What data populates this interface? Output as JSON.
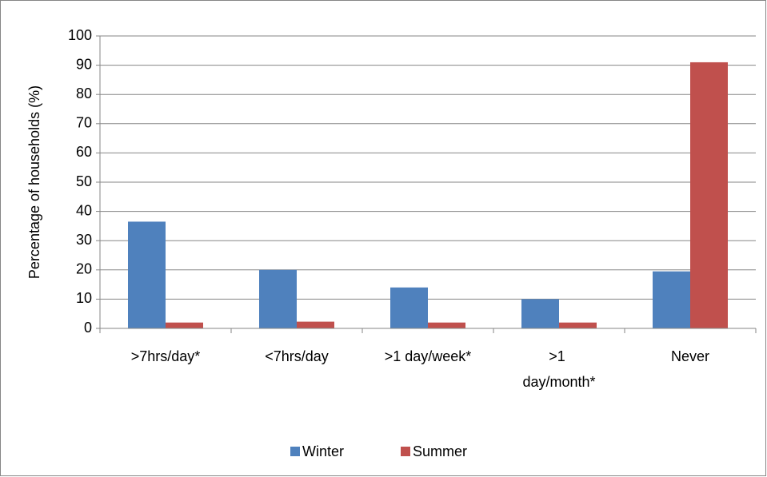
{
  "chart_data": {
    "type": "bar",
    "categories": [
      ">7hrs/day*",
      "<7hrs/day",
      ">1 day/week*",
      ">1 day/month*",
      "Never"
    ],
    "series": [
      {
        "name": "Winter",
        "color": "#4f81bd",
        "values": [
          36.5,
          20,
          14,
          10,
          19.5
        ]
      },
      {
        "name": "Summer",
        "color": "#c0504d",
        "values": [
          2,
          2.3,
          2,
          2,
          91
        ]
      }
    ],
    "ylabel": "Percentage of households (%)",
    "ylim": [
      0,
      100
    ],
    "yticks": [
      0,
      10,
      20,
      30,
      40,
      50,
      60,
      70,
      80,
      90,
      100
    ],
    "grid": true,
    "legend": "bottom"
  }
}
